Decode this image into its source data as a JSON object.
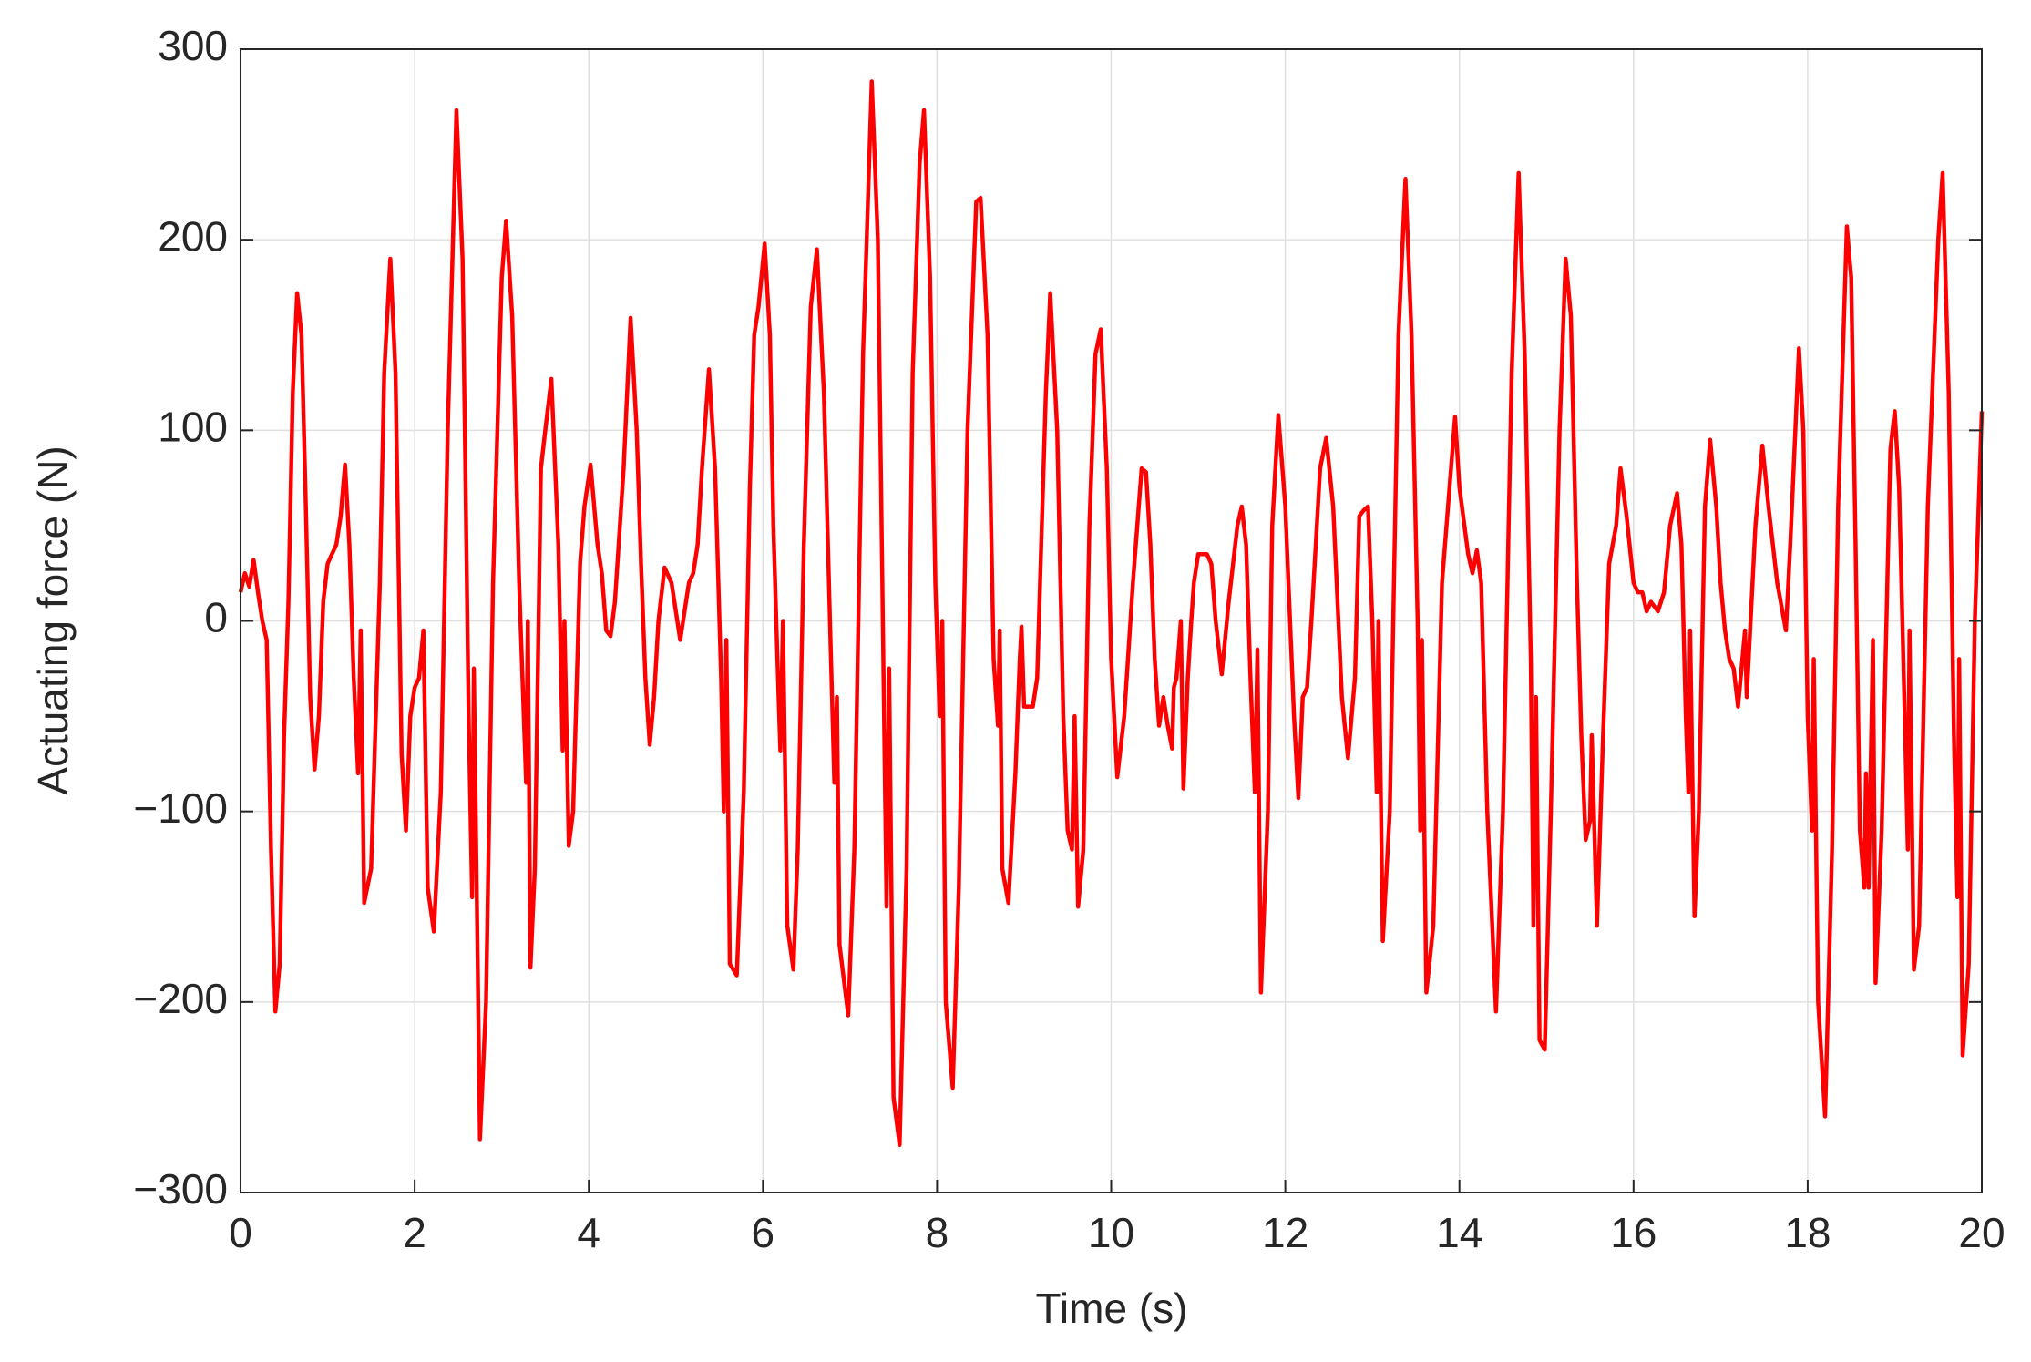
{
  "chart_data": {
    "type": "line",
    "xlabel": "Time (s)",
    "ylabel": "Actuating force (N)",
    "color": "#ff0000",
    "grid": true,
    "xlim": [
      0,
      20
    ],
    "xticks": [
      0,
      2,
      4,
      6,
      8,
      10,
      12,
      14,
      16,
      18,
      20
    ],
    "ylim": [
      -300,
      300
    ],
    "yticks": [
      {
        "value": -300,
        "label": "−300"
      },
      {
        "value": -200,
        "label": "−200"
      },
      {
        "value": -100,
        "label": "−100"
      },
      0,
      100,
      200,
      300
    ],
    "x": [
      0,
      0.05,
      0.1,
      0.15,
      0.2,
      0.25,
      0.3,
      0.35,
      0.4,
      0.45,
      0.5,
      0.55,
      0.6,
      0.65,
      0.7,
      0.75,
      0.8,
      0.85,
      0.9,
      0.95,
      1.0,
      1.1,
      1.15,
      1.2,
      1.25,
      1.3,
      1.35,
      1.38,
      1.42,
      1.5,
      1.6,
      1.65,
      1.72,
      1.78,
      1.85,
      1.9,
      1.95,
      2.0,
      2.05,
      2.1,
      2.15,
      2.22,
      2.3,
      2.38,
      2.48,
      2.55,
      2.62,
      2.66,
      2.68,
      2.75,
      2.82,
      2.9,
      3.0,
      3.05,
      3.12,
      3.2,
      3.28,
      3.3,
      3.33,
      3.38,
      3.45,
      3.5,
      3.57,
      3.65,
      3.7,
      3.72,
      3.77,
      3.82,
      3.9,
      3.95,
      4.02,
      4.1,
      4.15,
      4.2,
      4.25,
      4.3,
      4.4,
      4.48,
      4.55,
      4.6,
      4.65,
      4.7,
      4.75,
      4.8,
      4.87,
      4.95,
      5.05,
      5.15,
      5.2,
      5.25,
      5.3,
      5.38,
      5.45,
      5.52,
      5.55,
      5.58,
      5.62,
      5.7,
      5.78,
      5.85,
      5.9,
      5.95,
      6.02,
      6.08,
      6.12,
      6.18,
      6.2,
      6.23,
      6.28,
      6.35,
      6.4,
      6.47,
      6.55,
      6.62,
      6.7,
      6.77,
      6.82,
      6.85,
      6.88,
      6.98,
      7.05,
      7.15,
      7.25,
      7.32,
      7.38,
      7.42,
      7.45,
      7.5,
      7.57,
      7.65,
      7.72,
      7.8,
      7.85,
      7.92,
      7.98,
      8.03,
      8.06,
      8.1,
      8.18,
      8.25,
      8.35,
      8.45,
      8.5,
      8.58,
      8.65,
      8.7,
      8.72,
      8.75,
      8.82,
      8.9,
      8.95,
      8.97,
      9.0,
      9.1,
      9.15,
      9.25,
      9.3,
      9.38,
      9.45,
      9.5,
      9.55,
      9.58,
      9.62,
      9.68,
      9.75,
      9.82,
      9.88,
      9.95,
      10.0,
      10.07,
      10.15,
      10.25,
      10.3,
      10.35,
      10.4,
      10.45,
      10.5,
      10.55,
      10.6,
      10.65,
      10.7,
      10.72,
      10.75,
      10.8,
      10.83,
      10.88,
      10.92,
      10.95,
      11.0,
      11.1,
      11.15,
      11.2,
      11.27,
      11.35,
      11.45,
      11.5,
      11.55,
      11.6,
      11.65,
      11.68,
      11.72,
      11.8,
      11.85,
      11.92,
      12.0,
      12.1,
      12.15,
      12.2,
      12.25,
      12.3,
      12.4,
      12.47,
      12.55,
      12.65,
      12.72,
      12.8,
      12.85,
      12.9,
      12.95,
      13.0,
      13.05,
      13.07,
      13.12,
      13.2,
      13.3,
      13.38,
      13.45,
      13.52,
      13.55,
      13.57,
      13.62,
      13.7,
      13.8,
      13.95,
      14.0,
      14.1,
      14.15,
      14.2,
      14.25,
      14.32,
      14.42,
      14.5,
      14.6,
      14.68,
      14.75,
      14.82,
      14.85,
      14.88,
      14.92,
      14.98,
      15.05,
      15.15,
      15.22,
      15.28,
      15.35,
      15.4,
      15.45,
      15.5,
      15.52,
      15.58,
      15.65,
      15.72,
      15.8,
      15.85,
      15.92,
      16.0,
      16.05,
      16.1,
      16.15,
      16.2,
      16.28,
      16.35,
      16.42,
      16.5,
      16.55,
      16.6,
      16.63,
      16.65,
      16.7,
      16.75,
      16.82,
      16.88,
      16.95,
      17.0,
      17.05,
      17.1,
      17.15,
      17.2,
      17.25,
      17.28,
      17.3,
      17.4,
      17.48,
      17.55,
      17.65,
      17.75,
      17.8,
      17.9,
      17.95,
      18.0,
      18.05,
      18.07,
      18.12,
      18.2,
      18.28,
      18.35,
      18.45,
      18.5,
      18.55,
      18.6,
      18.65,
      18.67,
      18.7,
      18.75,
      18.78,
      18.85,
      18.95,
      19.0,
      19.05,
      19.12,
      19.15,
      19.17,
      19.22,
      19.28,
      19.38,
      19.5,
      19.55,
      19.62,
      19.68,
      19.72,
      19.74,
      19.78,
      19.85,
      19.92,
      20.0
    ],
    "values": [
      15,
      25,
      18,
      32,
      15,
      0,
      -10,
      -120,
      -205,
      -180,
      -60,
      10,
      120,
      172,
      150,
      60,
      -40,
      -78,
      -50,
      10,
      30,
      40,
      55,
      82,
      40,
      -30,
      -80,
      -5,
      -148,
      -130,
      20,
      130,
      190,
      130,
      -70,
      -110,
      -50,
      -35,
      -30,
      -5,
      -140,
      -163,
      -90,
      100,
      268,
      190,
      -50,
      -145,
      -25,
      -272,
      -200,
      20,
      180,
      210,
      160,
      20,
      -85,
      0,
      -182,
      -130,
      80,
      100,
      127,
      40,
      -68,
      0,
      -118,
      -100,
      30,
      60,
      82,
      40,
      25,
      -5,
      -8,
      10,
      80,
      159,
      100,
      30,
      -30,
      -65,
      -40,
      0,
      28,
      20,
      -10,
      20,
      25,
      40,
      80,
      132,
      80,
      -30,
      -100,
      -10,
      -180,
      -186,
      -90,
      70,
      150,
      165,
      198,
      150,
      50,
      -40,
      -68,
      0,
      -160,
      -183,
      -120,
      40,
      165,
      195,
      120,
      0,
      -85,
      -40,
      -170,
      -207,
      -120,
      140,
      283,
      200,
      -10,
      -150,
      -25,
      -250,
      -275,
      -130,
      130,
      240,
      268,
      180,
      20,
      -50,
      0,
      -200,
      -245,
      -140,
      100,
      220,
      222,
      150,
      -20,
      -55,
      -5,
      -130,
      -148,
      -80,
      -20,
      -3,
      -45,
      -45,
      -30,
      120,
      172,
      100,
      -50,
      -110,
      -120,
      -50,
      -150,
      -120,
      50,
      140,
      153,
      80,
      -20,
      -82,
      -50,
      20,
      50,
      80,
      78,
      40,
      -20,
      -55,
      -40,
      -55,
      -67,
      -35,
      -30,
      0,
      -88,
      -30,
      0,
      20,
      35,
      35,
      30,
      0,
      -28,
      10,
      50,
      60,
      40,
      -30,
      -90,
      -15,
      -195,
      -100,
      50,
      108,
      60,
      -50,
      -93,
      -40,
      -35,
      0,
      80,
      96,
      60,
      -40,
      -72,
      -30,
      55,
      58,
      60,
      0,
      -90,
      0,
      -168,
      -100,
      150,
      232,
      150,
      0,
      -110,
      -10,
      -195,
      -160,
      20,
      107,
      70,
      35,
      25,
      37,
      20,
      -100,
      -205,
      -100,
      130,
      235,
      140,
      -20,
      -160,
      -40,
      -220,
      -225,
      -100,
      100,
      190,
      160,
      20,
      -60,
      -115,
      -105,
      -60,
      -160,
      -60,
      30,
      50,
      80,
      55,
      20,
      15,
      15,
      5,
      10,
      5,
      15,
      50,
      67,
      40,
      -50,
      -90,
      -5,
      -155,
      -100,
      60,
      95,
      60,
      20,
      -5,
      -20,
      -25,
      -45,
      -20,
      -5,
      -40,
      50,
      92,
      60,
      20,
      -5,
      40,
      143,
      100,
      -50,
      -110,
      -20,
      -200,
      -260,
      -120,
      60,
      207,
      180,
      40,
      -110,
      -140,
      -80,
      -140,
      -10,
      -190,
      -110,
      90,
      110,
      70,
      -60,
      -120,
      -5,
      -183,
      -160,
      60,
      200,
      235,
      120,
      -60,
      -145,
      -20,
      -228,
      -180,
      0,
      110
    ]
  }
}
